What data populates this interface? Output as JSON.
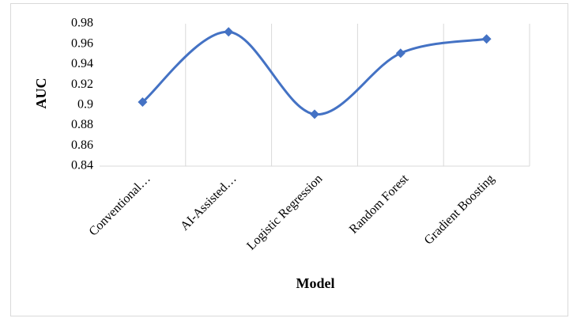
{
  "chart_data": {
    "type": "line",
    "x_label": "Model",
    "y_label": "AUC",
    "categories": [
      "Conventional…",
      "AI-Assisted…",
      "Logistic Regression",
      "Random Forest",
      "Gradient Boosting"
    ],
    "values": [
      0.903,
      0.972,
      0.891,
      0.951,
      0.965
    ],
    "color": "#4472c4",
    "smooth": true,
    "marker": "diamond",
    "ylim": [
      0.84,
      0.98
    ],
    "yticks": [
      0.84,
      0.86,
      0.88,
      0.9,
      0.92,
      0.94,
      0.96,
      0.98
    ],
    "grid": "vertical"
  }
}
